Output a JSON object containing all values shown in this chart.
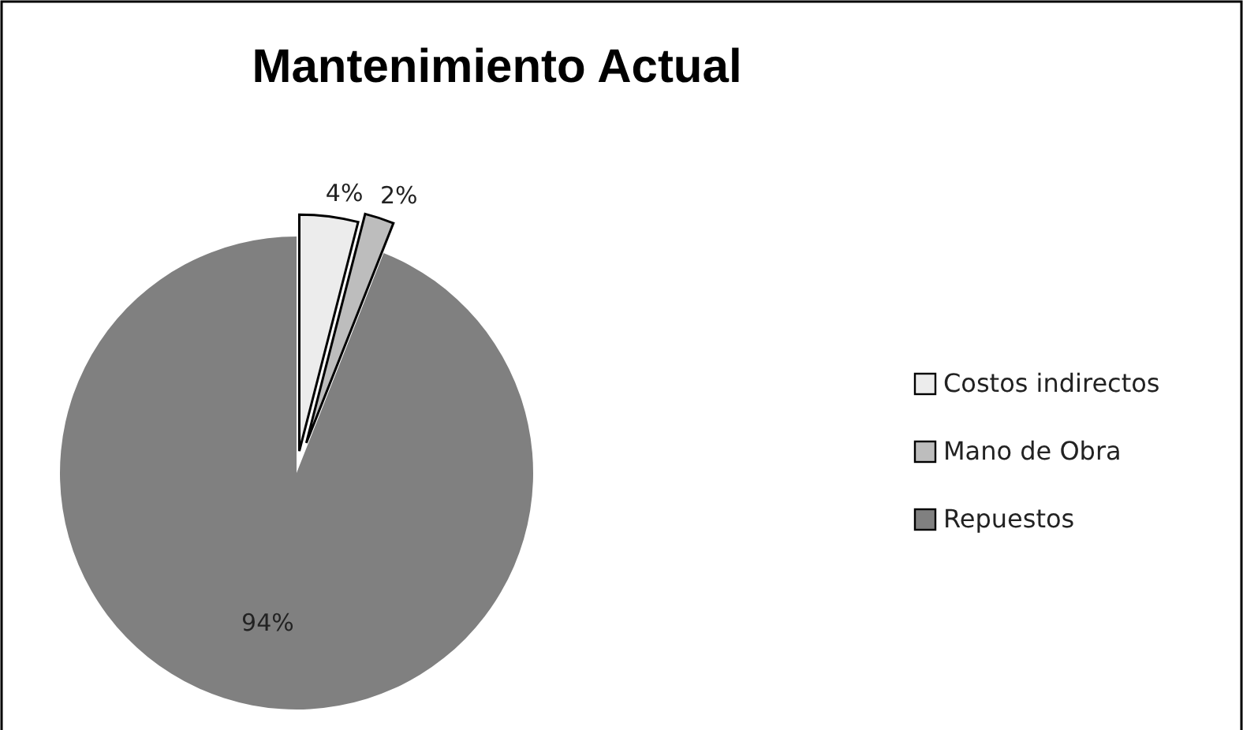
{
  "chart_data": {
    "type": "pie",
    "title": "Mantenimiento Actual",
    "categories": [
      "Costos indirectos",
      "Mano de Obra",
      "Repuestos"
    ],
    "values": [
      4,
      2,
      94
    ],
    "value_labels": [
      "4%",
      "2%",
      "94%"
    ],
    "colors": [
      "#ececec",
      "#bdbdbd",
      "#808080"
    ],
    "data_labels": true,
    "legend": "right"
  }
}
